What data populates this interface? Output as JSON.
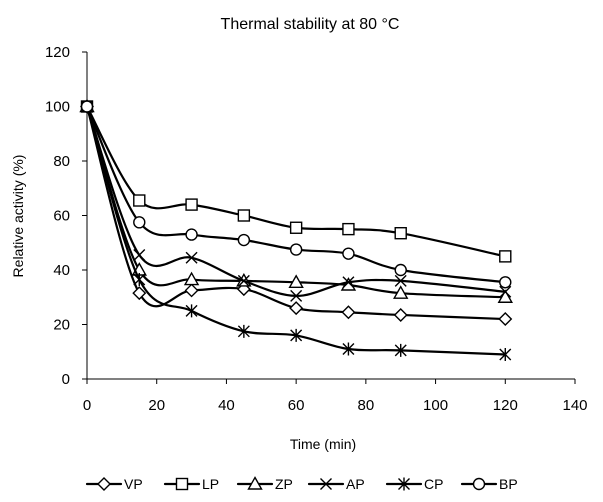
{
  "chart_data": {
    "type": "line",
    "title": "Thermal stability at 80 °C",
    "xlabel": "Time (min)",
    "ylabel": "Relative activity (%)",
    "xlim": [
      0,
      140
    ],
    "ylim": [
      0,
      120
    ],
    "x_ticks": [
      0,
      20,
      40,
      60,
      80,
      100,
      120,
      140
    ],
    "y_ticks": [
      0,
      20,
      40,
      60,
      80,
      100,
      120
    ],
    "grid": false,
    "legend_position": "bottom",
    "x": [
      0,
      15,
      30,
      45,
      60,
      75,
      90,
      120
    ],
    "series": [
      {
        "name": "VP",
        "marker": "diamond",
        "values": [
          100,
          31.5,
          32.5,
          33,
          26,
          24.5,
          23.5,
          22
        ]
      },
      {
        "name": "LP",
        "marker": "square",
        "values": [
          100,
          65.5,
          64,
          60,
          55.5,
          55,
          53.5,
          45
        ]
      },
      {
        "name": "ZP",
        "marker": "triangle",
        "values": [
          100,
          40,
          36.5,
          36,
          35.5,
          34.5,
          31.5,
          30
        ]
      },
      {
        "name": "AP",
        "marker": "x",
        "values": [
          100,
          45.5,
          44.5,
          36,
          30.5,
          35.5,
          36,
          32
        ]
      },
      {
        "name": "CP",
        "marker": "star",
        "values": [
          100,
          36.5,
          25,
          17.5,
          16,
          11,
          10.5,
          9
        ]
      },
      {
        "name": "BP",
        "marker": "circle",
        "values": [
          100,
          57.5,
          53,
          51,
          47.5,
          46,
          40,
          35.5
        ]
      }
    ]
  }
}
